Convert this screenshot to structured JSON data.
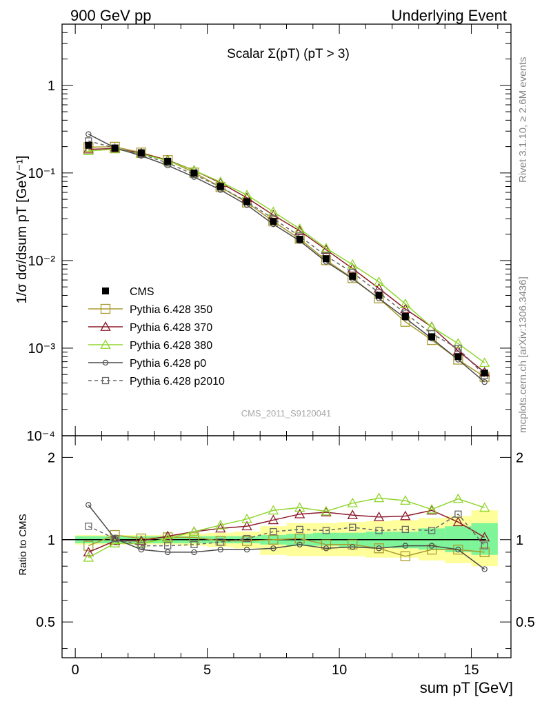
{
  "header": {
    "left": "900 GeV pp",
    "right": "Underlying Event"
  },
  "side_text": {
    "top": "Rivet 3.1.10, ≥ 2.6M events",
    "bottom": "mcplots.cern.ch [arXiv:1306.3436]"
  },
  "watermark": "CMS_2011_S9120041",
  "chart_data": [
    {
      "type": "line",
      "title": "Scalar Σ(pT) (pT > 3)",
      "ylabel": "1/σ dσ/dsum pT [GeV⁻¹]",
      "yscale": "log",
      "ylim": [
        0.0001,
        5
      ],
      "xlim": [
        -0.5,
        16.5
      ],
      "y_ticks": [
        "10⁻⁴",
        "10⁻³",
        "10⁻²",
        "10⁻¹",
        "1"
      ],
      "legend_position": "left",
      "x": [
        0.5,
        1.5,
        2.5,
        3.5,
        4.5,
        5.5,
        6.5,
        7.5,
        8.5,
        9.5,
        10.5,
        11.5,
        12.5,
        13.5,
        14.5,
        15.5
      ],
      "series": [
        {
          "name": "CMS",
          "color": "#000000",
          "marker": "filled-square",
          "line": "none",
          "values": [
            0.207,
            0.192,
            0.17,
            0.136,
            0.1,
            0.07,
            0.047,
            0.028,
            0.0175,
            0.0105,
            0.0066,
            0.004,
            0.0023,
            0.00135,
            0.0008,
            0.00052
          ]
        },
        {
          "name": "Pythia 6.428 350",
          "color": "#a89a2e",
          "marker": "square",
          "line": "solid",
          "values": [
            0.197,
            0.199,
            0.171,
            0.14,
            0.101,
            0.069,
            0.046,
            0.028,
            0.0177,
            0.0101,
            0.0063,
            0.0037,
            0.002,
            0.00124,
            0.00074,
            0.00047
          ]
        },
        {
          "name": "Pythia 6.428 370",
          "color": "#8b1a2b",
          "marker": "triangle",
          "line": "solid",
          "values": [
            0.186,
            0.19,
            0.168,
            0.14,
            0.107,
            0.077,
            0.052,
            0.033,
            0.0218,
            0.0133,
            0.0081,
            0.0048,
            0.0028,
            0.00175,
            0.00093,
            0.00053
          ]
        },
        {
          "name": "Pythia 6.428 380",
          "color": "#8fd62c",
          "marker": "triangle",
          "line": "solid",
          "values": [
            0.178,
            0.187,
            0.165,
            0.138,
            0.107,
            0.079,
            0.056,
            0.036,
            0.023,
            0.0138,
            0.009,
            0.0057,
            0.0032,
            0.00174,
            0.00113,
            0.00068
          ]
        },
        {
          "name": "Pythia 6.428 p0",
          "color": "#4a4a4a",
          "marker": "circle",
          "line": "solid",
          "values": [
            0.277,
            0.194,
            0.157,
            0.122,
            0.09,
            0.064,
            0.043,
            0.026,
            0.0168,
            0.0097,
            0.0062,
            0.0037,
            0.0022,
            0.00129,
            0.00074,
            0.00041
          ]
        },
        {
          "name": "Pythia 6.428 p2010",
          "color": "#666666",
          "marker": "square",
          "line": "dashed",
          "values": [
            0.232,
            0.193,
            0.163,
            0.13,
            0.096,
            0.069,
            0.047,
            0.03,
            0.019,
            0.0113,
            0.0073,
            0.0043,
            0.0025,
            0.00146,
            0.00099,
            0.00049
          ]
        }
      ]
    },
    {
      "type": "line",
      "title": "",
      "xlabel": "sum pT [GeV]",
      "ylabel": "Ratio to CMS",
      "yscale": "log",
      "ylim": [
        0.37,
        2.4
      ],
      "xlim": [
        -0.5,
        16.5
      ],
      "y_ticks": [
        "0.5",
        "1",
        "2"
      ],
      "x_ticks": [
        "0",
        "5",
        "10",
        "15"
      ],
      "reference_line": 1,
      "x": [
        0.5,
        1.5,
        2.5,
        3.5,
        4.5,
        5.5,
        6.5,
        7.5,
        8.5,
        9.5,
        10.5,
        11.5,
        12.5,
        13.5,
        14.5,
        15.5
      ],
      "band_green": [
        [
          0.97,
          1.03
        ],
        [
          0.97,
          1.03
        ],
        [
          0.97,
          1.03
        ],
        [
          0.97,
          1.03
        ],
        [
          0.97,
          1.03
        ],
        [
          0.97,
          1.03
        ],
        [
          0.97,
          1.03
        ],
        [
          0.96,
          1.04
        ],
        [
          0.95,
          1.05
        ],
        [
          0.95,
          1.06
        ],
        [
          0.94,
          1.06
        ],
        [
          0.94,
          1.07
        ],
        [
          0.93,
          1.07
        ],
        [
          0.92,
          1.1
        ],
        [
          0.9,
          1.12
        ],
        [
          0.88,
          1.15
        ]
      ],
      "band_yellow": [
        [
          0.96,
          1.04
        ],
        [
          0.96,
          1.04
        ],
        [
          0.96,
          1.04
        ],
        [
          0.96,
          1.04
        ],
        [
          0.95,
          1.05
        ],
        [
          0.94,
          1.06
        ],
        [
          0.93,
          1.07
        ],
        [
          0.88,
          1.12
        ],
        [
          0.87,
          1.15
        ],
        [
          0.87,
          1.15
        ],
        [
          0.87,
          1.16
        ],
        [
          0.86,
          1.17
        ],
        [
          0.86,
          1.18
        ],
        [
          0.84,
          1.2
        ],
        [
          0.82,
          1.22
        ],
        [
          0.8,
          1.28
        ]
      ],
      "series": [
        {
          "name": "Pythia 6.428 350",
          "color": "#a89a2e",
          "marker": "square",
          "line": "solid",
          "values": [
            0.95,
            1.04,
            1.01,
            1.02,
            1.02,
            0.99,
            0.99,
            1.0,
            1.01,
            0.96,
            0.96,
            0.93,
            0.87,
            0.92,
            0.92,
            0.9
          ]
        },
        {
          "name": "Pythia 6.428 370",
          "color": "#8b1a2b",
          "marker": "triangle",
          "line": "solid",
          "values": [
            0.9,
            0.99,
            0.99,
            1.03,
            1.07,
            1.1,
            1.12,
            1.18,
            1.24,
            1.26,
            1.23,
            1.21,
            1.22,
            1.28,
            1.16,
            1.02
          ]
        },
        {
          "name": "Pythia 6.428 380",
          "color": "#8fd62c",
          "marker": "triangle",
          "line": "solid",
          "values": [
            0.86,
            0.97,
            0.97,
            1.01,
            1.07,
            1.13,
            1.19,
            1.28,
            1.31,
            1.27,
            1.36,
            1.42,
            1.39,
            1.29,
            1.41,
            1.31
          ]
        },
        {
          "name": "Pythia 6.428 p0",
          "color": "#4a4a4a",
          "marker": "circle",
          "line": "solid",
          "values": [
            1.34,
            1.01,
            0.92,
            0.9,
            0.9,
            0.92,
            0.92,
            0.93,
            0.96,
            0.93,
            0.94,
            0.93,
            0.95,
            0.95,
            0.92,
            0.78
          ]
        },
        {
          "name": "Pythia 6.428 p2010",
          "color": "#666666",
          "marker": "square",
          "line": "dashed",
          "values": [
            1.12,
            1.01,
            0.95,
            0.95,
            0.96,
            0.98,
            1.01,
            1.07,
            1.09,
            1.08,
            1.11,
            1.08,
            1.09,
            1.08,
            1.24,
            0.95
          ]
        }
      ]
    }
  ]
}
